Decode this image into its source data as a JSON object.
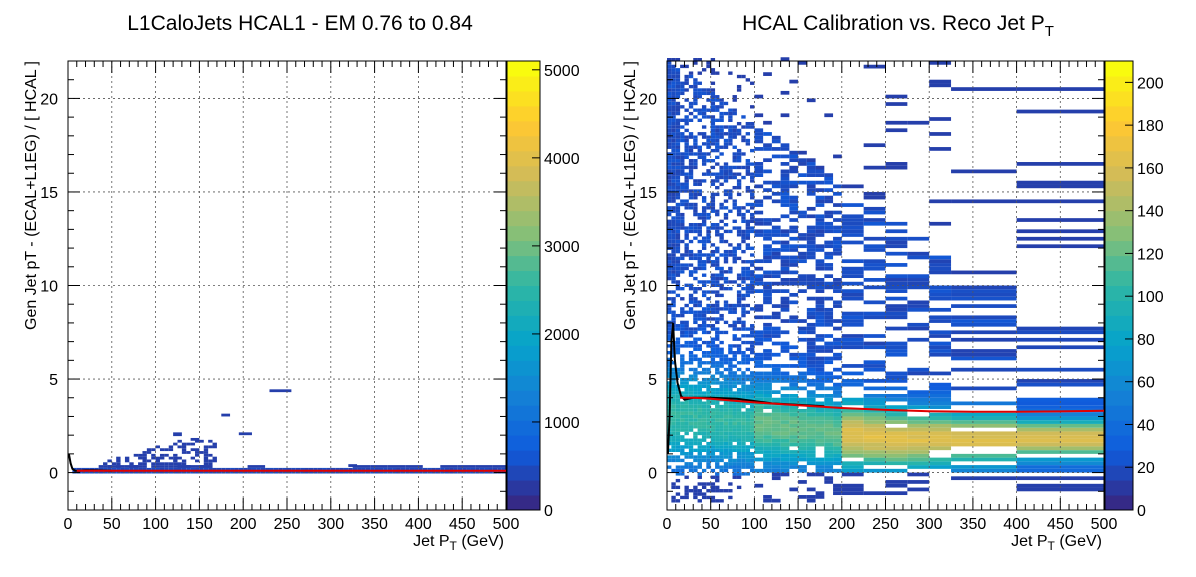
{
  "chart_data": [
    {
      "type": "heatmap",
      "title": "L1CaloJets HCAL1 - EM 0.76 to 0.84",
      "xlabel_main": "Jet P",
      "xlabel_sub": "T",
      "xlabel_unit": " (GeV)",
      "ylabel": "Gen Jet pT - (ECAL+L1EG) / [ HCAL ]",
      "xlim": [
        0,
        500
      ],
      "ylim": [
        -2,
        22
      ],
      "x_ticks": [
        0,
        50,
        100,
        150,
        200,
        250,
        300,
        350,
        400,
        450,
        500
      ],
      "y_ticks": [
        0,
        5,
        10,
        15,
        20
      ],
      "z_range": [
        0,
        5100
      ],
      "z_ticks": [
        0,
        1000,
        2000,
        3000,
        4000,
        5000
      ],
      "grid": true,
      "red_fit": {
        "x": [
          10,
          500
        ],
        "y": [
          0.1,
          0.1
        ]
      },
      "black_profile": {
        "x": [
          1,
          3,
          5,
          8,
          12,
          20,
          30,
          50
        ],
        "y": [
          1.0,
          0.5,
          0.2,
          0.1,
          0.1,
          0.12,
          0.12,
          0.1
        ]
      }
    },
    {
      "type": "heatmap",
      "title_main": "HCAL Calibration vs. Reco Jet P",
      "title_sub": "T",
      "xlabel_main": "Jet P",
      "xlabel_sub": "T",
      "xlabel_unit": " (GeV)",
      "ylabel": "Gen Jet pT - (ECAL+L1EG) / [ HCAL ]",
      "xlim": [
        0,
        500
      ],
      "ylim": [
        -2,
        22
      ],
      "x_ticks": [
        0,
        50,
        100,
        150,
        200,
        250,
        300,
        350,
        400,
        450,
        500
      ],
      "y_ticks": [
        0,
        5,
        10,
        15,
        20
      ],
      "z_range": [
        0,
        210
      ],
      "z_ticks": [
        0,
        20,
        40,
        60,
        80,
        100,
        120,
        140,
        160,
        180,
        200
      ],
      "grid": true,
      "red_fit": {
        "x": [
          15,
          20,
          30,
          50,
          75,
          100,
          150,
          200,
          250,
          300,
          350,
          400,
          450,
          500
        ],
        "y": [
          4.0,
          4.0,
          4.0,
          3.95,
          3.85,
          3.75,
          3.6,
          3.45,
          3.35,
          3.28,
          3.25,
          3.25,
          3.27,
          3.3
        ]
      },
      "black_profile": {
        "x": [
          1,
          3,
          5,
          7,
          9,
          12,
          16,
          20,
          30,
          50,
          80,
          120,
          180
        ],
        "y": [
          1.0,
          3.0,
          7.0,
          8.0,
          6.0,
          4.8,
          4.1,
          3.9,
          4.0,
          4.0,
          3.95,
          3.7,
          3.55
        ]
      }
    }
  ]
}
